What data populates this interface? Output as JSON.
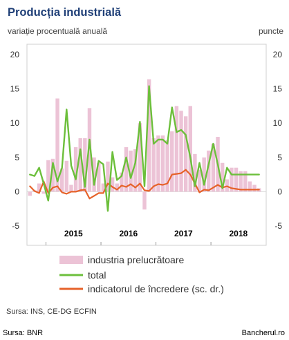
{
  "header": {
    "title": "Producția industrială",
    "subtitle": "variație procentuală anuală",
    "right_unit": "puncte"
  },
  "footer": {
    "source": "Sursa: INS, CE-DG ECFIN",
    "credit_left": "Sursa: BNR",
    "credit_right": "Bancherul.ro"
  },
  "chart_data": {
    "type": "bar",
    "ylim": [
      -5,
      20
    ],
    "yticks_left": [
      "20",
      "15",
      "10",
      "5",
      "0",
      "-5"
    ],
    "yticks_right": [
      "20",
      "15",
      "10",
      "5",
      "0",
      "-5"
    ],
    "year_labels": [
      "2015",
      "2016",
      "2017",
      "2018"
    ],
    "legend": [
      "industria prelucrătoare",
      "total",
      "indicatorul de încredere (sc. dr.)"
    ],
    "colors": {
      "bars": "#ecc3d6",
      "total": "#6cbf3b",
      "confidence": "#e6622a"
    },
    "x": [
      "2014-09",
      "2014-10",
      "2014-11",
      "2014-12",
      "2015-01",
      "2015-02",
      "2015-03",
      "2015-04",
      "2015-05",
      "2015-06",
      "2015-07",
      "2015-08",
      "2015-09",
      "2015-10",
      "2015-11",
      "2015-12",
      "2016-01",
      "2016-02",
      "2016-03",
      "2016-04",
      "2016-05",
      "2016-06",
      "2016-07",
      "2016-08",
      "2016-09",
      "2016-10",
      "2016-11",
      "2016-12",
      "2017-01",
      "2017-02",
      "2017-03",
      "2017-04",
      "2017-05",
      "2017-06",
      "2017-07",
      "2017-08",
      "2017-09",
      "2017-10",
      "2017-11",
      "2017-12",
      "2018-01",
      "2018-02",
      "2018-03",
      "2018-04",
      "2018-05",
      "2018-06",
      "2018-07",
      "2018-08",
      "2018-09",
      "2018-10",
      "2018-11"
    ],
    "series": [
      {
        "name": "industria prelucrătoare",
        "values": [
          -0.6,
          0.2,
          1.2,
          -0.3,
          4.6,
          4.8,
          13.6,
          3.4,
          4.5,
          1.0,
          6.5,
          7.8,
          7.8,
          12.2,
          5.0,
          4.2,
          1.2,
          4.4,
          2.1,
          1.2,
          2.8,
          6.5,
          6.0,
          6.2,
          10.0,
          -2.6,
          16.4,
          7.8,
          8.2,
          8.2,
          7.5,
          8.8,
          12.5,
          11.8,
          11.0,
          12.5,
          5.5,
          3.2,
          5.0,
          6.0,
          7.0,
          8.0,
          4.2,
          1.8,
          3.5,
          3.5,
          3.0,
          3.0,
          1.5,
          1.0,
          0.5
        ]
      },
      {
        "name": "total",
        "values": [
          2.5,
          2.3,
          3.5,
          1.2,
          -1.3,
          4.2,
          1.5,
          3.5,
          12.0,
          3.8,
          1.8,
          6.2,
          0.7,
          7.6,
          1.0,
          4.5,
          4.0,
          -2.8,
          5.8,
          1.7,
          2.3,
          5.0,
          2.0,
          4.2,
          10.2,
          0.8,
          15.4,
          7.0,
          7.6,
          7.6,
          7.0,
          12.3,
          8.7,
          9.0,
          8.3,
          5.0,
          0.8,
          4.2,
          1.0,
          4.0,
          7.0,
          4.0,
          0.5,
          3.5,
          2.5,
          2.5,
          2.5,
          2.5,
          2.5,
          2.5,
          2.5
        ]
      },
      {
        "name": "indicatorul de încredere (sc. dr.)",
        "values": [
          0.8,
          0.1,
          -0.2,
          1.5,
          -0.2,
          0.6,
          0.8,
          -0.1,
          -0.3,
          0.0,
          0.0,
          0.2,
          0.3,
          -1.0,
          -0.6,
          -0.2,
          -0.2,
          1.2,
          0.7,
          0.3,
          0.9,
          0.7,
          1.1,
          0.6,
          1.2,
          0.2,
          0.1,
          0.8,
          1.1,
          1.0,
          1.2,
          2.5,
          2.6,
          2.7,
          3.2,
          2.5,
          1.2,
          -0.1,
          0.3,
          0.2,
          0.6,
          1.0,
          0.6,
          0.8,
          0.5,
          0.4,
          0.3,
          0.3,
          0.3,
          0.3,
          0.3
        ]
      }
    ]
  }
}
